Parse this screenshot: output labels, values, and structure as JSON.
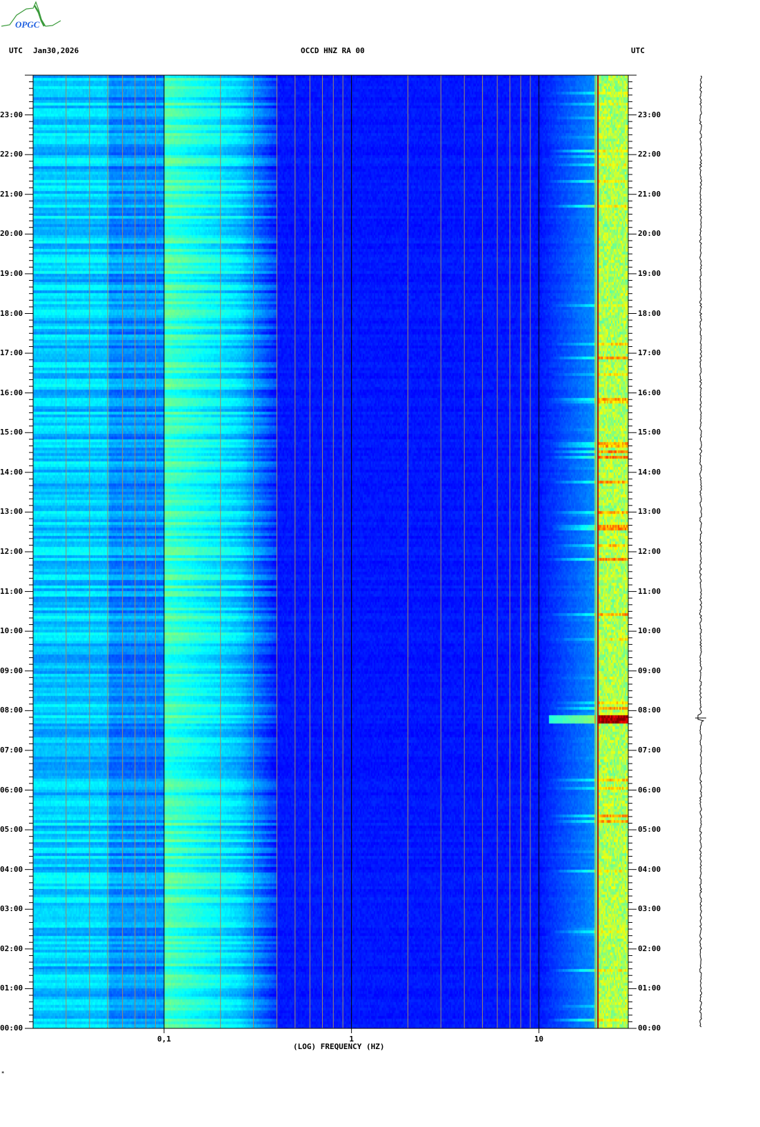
{
  "logo_text": "OPGC",
  "header": {
    "left_tz": "UTC",
    "date": "Jan30,2026",
    "station": "OCCD HNZ RA 00",
    "right_tz": "UTC"
  },
  "colors": {
    "background_low": "#0000b4",
    "mid": "#00ffff",
    "high": "#ffff00",
    "peak": "#b40000",
    "grid_minor": "#a08868",
    "grid_major": "#000000",
    "logo_green": "#3a9a3a",
    "logo_blue": "#2060e0"
  },
  "corner_mark": "*",
  "chart_data": {
    "type": "heatmap",
    "title": "OCCD HNZ RA 00",
    "xlabel": "(LOG) FREQUENCY (HZ)",
    "ylabel": "UTC",
    "x_scale": "log",
    "xlim": [
      0.02,
      30
    ],
    "x_ticks": [
      {
        "value": 0.1,
        "label": "0,1"
      },
      {
        "value": 1,
        "label": "1"
      },
      {
        "value": 10,
        "label": "10"
      }
    ],
    "x_gridlines_hz": [
      0.02,
      0.03,
      0.04,
      0.05,
      0.06,
      0.07,
      0.08,
      0.09,
      0.1,
      0.2,
      0.3,
      0.4,
      0.5,
      0.6,
      0.7,
      0.8,
      0.9,
      1,
      2,
      3,
      4,
      5,
      6,
      7,
      8,
      9,
      10,
      20
    ],
    "ylim_hours": [
      0,
      24
    ],
    "y_ticks": [
      "00:00",
      "01:00",
      "02:00",
      "03:00",
      "04:00",
      "05:00",
      "06:00",
      "07:00",
      "08:00",
      "09:00",
      "10:00",
      "11:00",
      "12:00",
      "13:00",
      "14:00",
      "15:00",
      "16:00",
      "17:00",
      "18:00",
      "19:00",
      "20:00",
      "21:00",
      "22:00",
      "23:00"
    ],
    "colormap": "jet",
    "features": [
      {
        "band_hz": [
          0.12,
          0.25
        ],
        "level": "elevated (cyan/yellow) all day"
      },
      {
        "band_hz": [
          0.4,
          10
        ],
        "level": "low (dark blue)"
      },
      {
        "band_hz": [
          20,
          20.5
        ],
        "level": "persistent high (red line)"
      },
      {
        "band_hz": [
          12,
          30
        ],
        "level": "high during 05:00-17:00, strong event near 07:50"
      }
    ],
    "trace_event_time": "07:50"
  }
}
